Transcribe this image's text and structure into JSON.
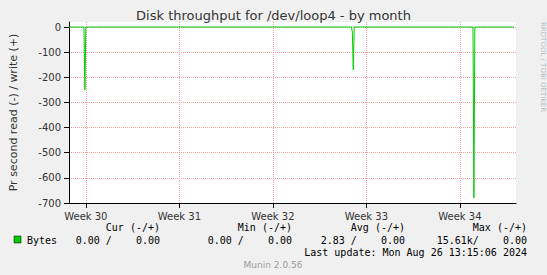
{
  "chart_data": {
    "type": "line",
    "title": "Disk throughput for /dev/loop4 - by month",
    "y_label": "Pr second read (-) / write (+)",
    "x": [
      29.82,
      29.98,
      29.99,
      30.0,
      32.84,
      32.85,
      32.86,
      32.87,
      34.14,
      34.15,
      34.16,
      34.58
    ],
    "series": [
      {
        "name": "Bytes",
        "color": "#00cc00",
        "values": [
          0,
          0,
          -250,
          0,
          0,
          -20,
          -170,
          0,
          0,
          -680,
          0,
          0
        ]
      }
    ],
    "xlim": [
      29.82,
      34.6
    ],
    "xticks": [
      {
        "value": 30,
        "label": "Week 30"
      },
      {
        "value": 31,
        "label": "Week 31"
      },
      {
        "value": 32,
        "label": "Week 32"
      },
      {
        "value": 33,
        "label": "Week 33"
      },
      {
        "value": 34,
        "label": "Week 34"
      }
    ],
    "ylim": [
      -700,
      20
    ],
    "yticks": [
      -700,
      -600,
      -500,
      -400,
      -300,
      -200,
      -100,
      0
    ],
    "grid": true,
    "legend_table": {
      "headers": [
        "Cur (-/+)",
        "Min (-/+)",
        "Avg (-/+)",
        "Max (-/+)"
      ],
      "rows": [
        {
          "name": "Bytes",
          "cells": [
            "0.00 /    0.00",
            "0.00 /    0.00",
            "2.83 /    0.00",
            "15.61k/    0.00"
          ]
        }
      ]
    },
    "last_update": "Last update: Mon Aug 26 13:15:06 2024",
    "footer": "Munin 2.0.56",
    "side_text": "RRDTOOL / TOBI OETIKER"
  }
}
